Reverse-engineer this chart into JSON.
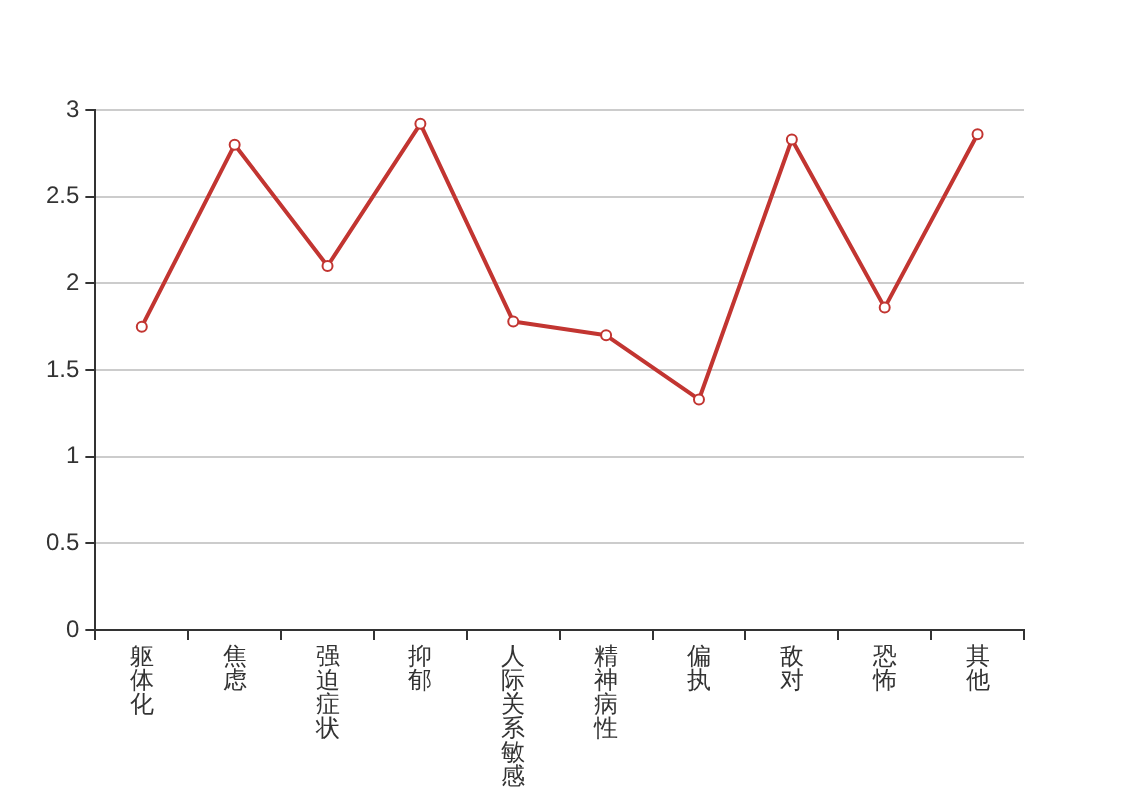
{
  "chart_data": {
    "type": "line",
    "categories": [
      "躯体化",
      "焦虑",
      "强迫症状",
      "抑郁",
      "人际关系敏感",
      "精神病性",
      "偏执",
      "敌对",
      "恐怖",
      "其他"
    ],
    "series": [
      {
        "color": "#c23531",
        "values": [
          1.75,
          2.8,
          2.1,
          2.92,
          1.78,
          1.7,
          1.33,
          2.83,
          1.86,
          2.86
        ]
      }
    ],
    "ylim": [
      0,
      3
    ],
    "yticks": [
      0,
      0.5,
      1,
      1.5,
      2,
      2.5,
      3
    ],
    "grid": "y",
    "legend": false,
    "marker": "circle",
    "line_style": "solid"
  }
}
